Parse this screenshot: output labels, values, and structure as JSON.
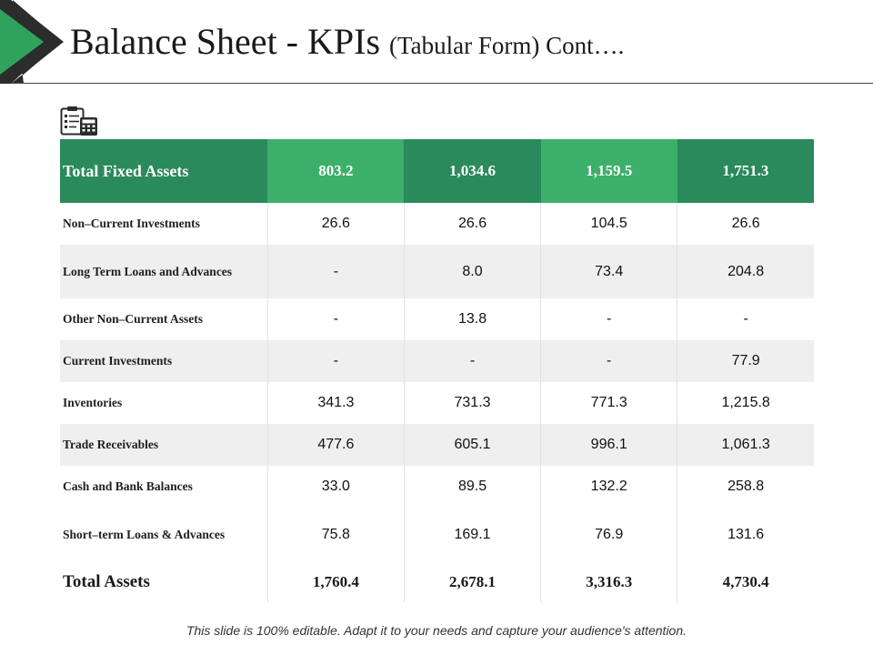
{
  "title": {
    "main": "Balance Sheet - KPIs",
    "sub": "(Tabular Form) Cont…."
  },
  "colors": {
    "accent_dark": "#2a8a5b",
    "accent_light": "#3cb06a",
    "row_alt": "#efefef"
  },
  "icons": {
    "header_icon": "clipboard-calculator-icon"
  },
  "table": {
    "header": {
      "label": "Total Fixed Assets",
      "values": [
        "803.2",
        "1,034.6",
        "1,159.5",
        "1,751.3"
      ]
    },
    "rows": [
      {
        "label": "Non–Current Investments",
        "values": [
          "26.6",
          "26.6",
          "104.5",
          "26.6"
        ]
      },
      {
        "label": "Long Term Loans and Advances",
        "values": [
          "-",
          "8.0",
          "73.4",
          "204.8"
        ]
      },
      {
        "label": "Other Non–Current Assets",
        "values": [
          "-",
          "13.8",
          "-",
          "-"
        ]
      },
      {
        "label": "Current Investments",
        "values": [
          "-",
          "-",
          "-",
          "77.9"
        ]
      },
      {
        "label": "Inventories",
        "values": [
          "341.3",
          "731.3",
          "771.3",
          "1,215.8"
        ]
      },
      {
        "label": "Trade Receivables",
        "values": [
          "477.6",
          "605.1",
          "996.1",
          "1,061.3"
        ]
      },
      {
        "label": "Cash and Bank Balances",
        "values": [
          "33.0",
          "89.5",
          "132.2",
          "258.8"
        ]
      },
      {
        "label": "Short–term Loans & Advances",
        "values": [
          "75.8",
          "169.1",
          "76.9",
          "131.6"
        ]
      }
    ],
    "total": {
      "label": "Total Assets",
      "values": [
        "1,760.4",
        "2,678.1",
        "3,316.3",
        "4,730.4"
      ]
    }
  },
  "footer": "This slide is 100% editable. Adapt it to your needs and capture your audience's attention."
}
